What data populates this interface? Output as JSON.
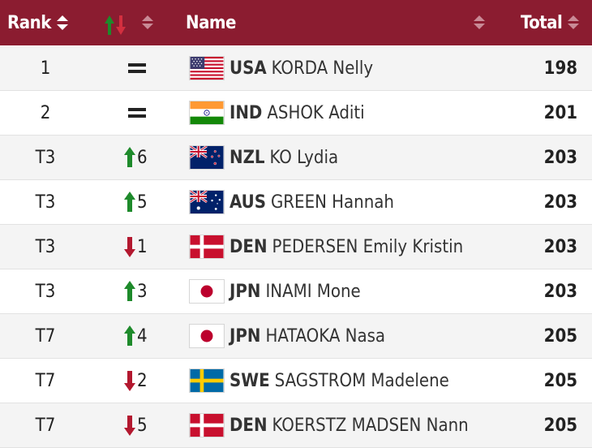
{
  "header": {
    "rank_label": "Rank",
    "name_label": "Name",
    "total_label": "Total"
  },
  "colors": {
    "header_bg": "#8b1c30",
    "up": "#1e8a2b",
    "down": "#b3182f"
  },
  "rows": [
    {
      "rank": "1",
      "movement": "none",
      "move_value": "",
      "flag": "usa-flag-icon",
      "noc": "USA",
      "name": "KORDA Nelly",
      "total": "198"
    },
    {
      "rank": "2",
      "movement": "none",
      "move_value": "",
      "flag": "india-flag-icon",
      "noc": "IND",
      "name": "ASHOK Aditi",
      "total": "201"
    },
    {
      "rank": "T3",
      "movement": "up",
      "move_value": "6",
      "flag": "new-zealand-flag-icon",
      "noc": "NZL",
      "name": "KO Lydia",
      "total": "203"
    },
    {
      "rank": "T3",
      "movement": "up",
      "move_value": "5",
      "flag": "australia-flag-icon",
      "noc": "AUS",
      "name": "GREEN Hannah",
      "total": "203"
    },
    {
      "rank": "T3",
      "movement": "down",
      "move_value": "1",
      "flag": "denmark-flag-icon",
      "noc": "DEN",
      "name": "PEDERSEN Emily Kristin",
      "total": "203"
    },
    {
      "rank": "T3",
      "movement": "up",
      "move_value": "3",
      "flag": "japan-flag-icon",
      "noc": "JPN",
      "name": "INAMI Mone",
      "total": "203"
    },
    {
      "rank": "T7",
      "movement": "up",
      "move_value": "4",
      "flag": "japan-flag-icon",
      "noc": "JPN",
      "name": "HATAOKA Nasa",
      "total": "205"
    },
    {
      "rank": "T7",
      "movement": "down",
      "move_value": "2",
      "flag": "sweden-flag-icon",
      "noc": "SWE",
      "name": "SAGSTROM Madelene",
      "total": "205"
    },
    {
      "rank": "T7",
      "movement": "down",
      "move_value": "5",
      "flag": "denmark-flag-icon",
      "noc": "DEN",
      "name": "KOERSTZ MADSEN Nann",
      "total": "205"
    }
  ]
}
